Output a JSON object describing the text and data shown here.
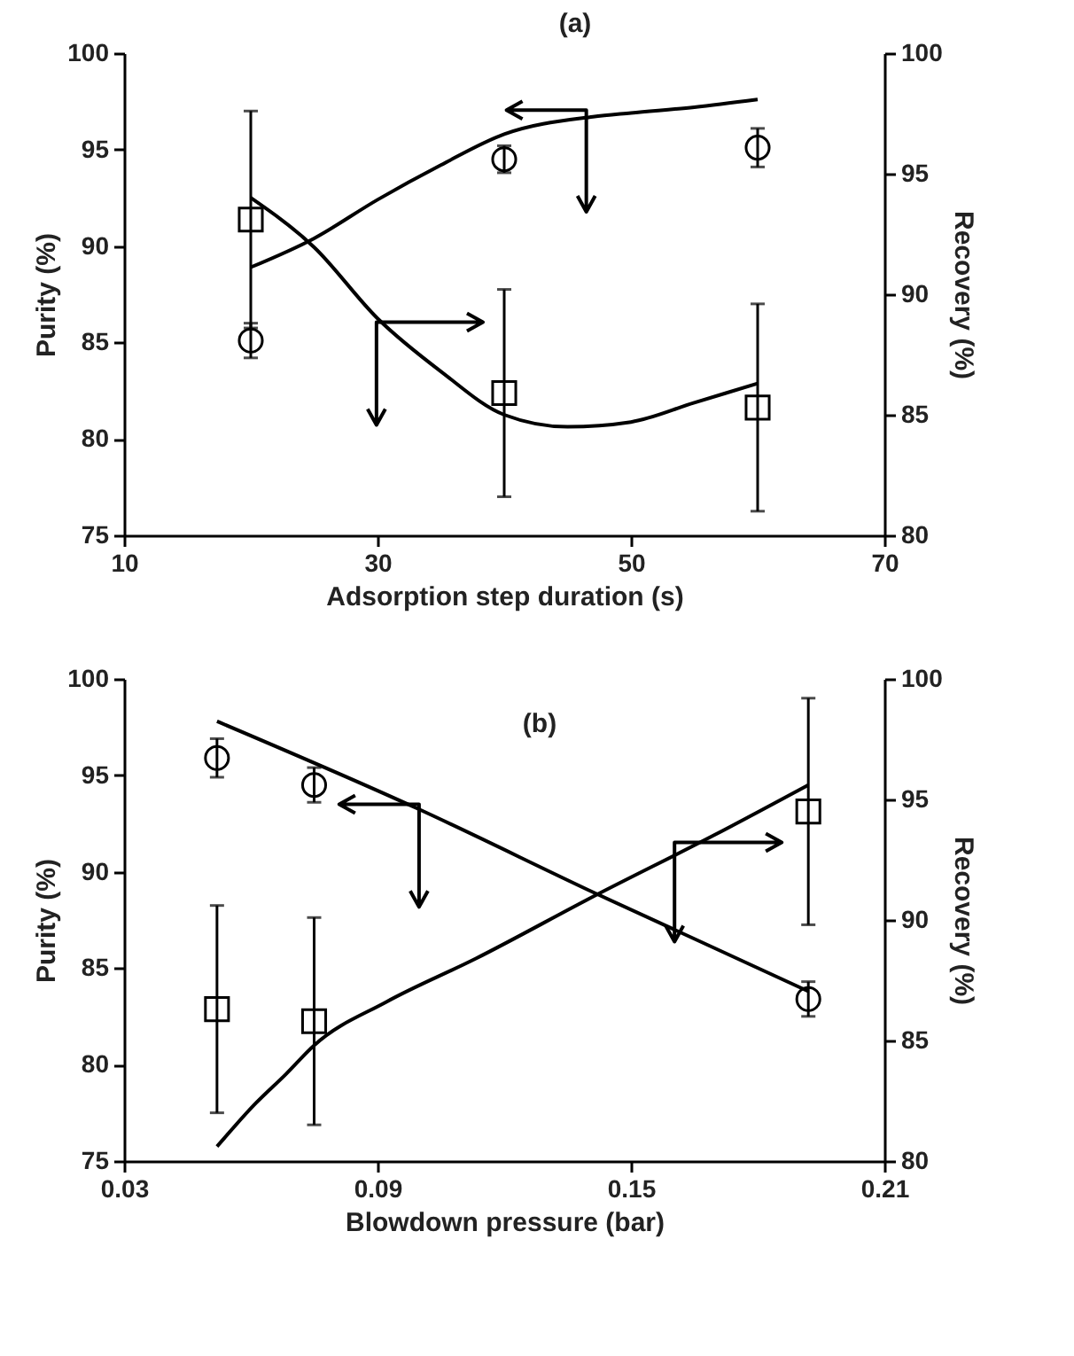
{
  "chart_data": [
    {
      "type": "scatter",
      "title": "(a)",
      "xlabel": "Adsorption step duration (s)",
      "ylabel": "Purity (%)",
      "y2label": "Recovery (%)",
      "xlim": [
        10,
        70
      ],
      "xticks": [
        10,
        30,
        50,
        70
      ],
      "ylim": [
        75,
        100
      ],
      "yticks": [
        75,
        80,
        85,
        90,
        95,
        100
      ],
      "y2lim": [
        80,
        100
      ],
      "y2ticks": [
        80,
        85,
        90,
        95,
        100
      ],
      "series": [
        {
          "marker": "circle",
          "color": "#000000",
          "x": [
            20,
            40,
            60
          ],
          "values": [
            85.1,
            94.5,
            95.1
          ],
          "errors": [
            0.9,
            0.7,
            1.0
          ]
        },
        {
          "marker": "square",
          "axis": "y2",
          "color": "#000000",
          "x": [
            20,
            40,
            60
          ],
          "values": [
            93.1,
            85.9,
            85.3
          ],
          "errors": [
            4.5,
            4.3,
            4.3
          ]
        },
        {
          "type": "line",
          "color": "#000000",
          "x": [
            20,
            25,
            30,
            35,
            40,
            47,
            50,
            55,
            60
          ],
          "values": [
            88.9,
            90.4,
            92.4,
            94.2,
            95.8,
            96.7,
            96.9,
            97.2,
            97.6
          ]
        },
        {
          "type": "line",
          "axis": "y2",
          "color": "#000000",
          "x": [
            20,
            25,
            30,
            35,
            40,
            45,
            50,
            55,
            60
          ],
          "values": [
            94.0,
            91.95,
            89.0,
            86.8,
            85.0,
            84.5,
            84.7,
            85.5,
            86.3
          ]
        }
      ]
    },
    {
      "type": "scatter",
      "title": "(b)",
      "xlabel": "Blowdown pressure (bar)",
      "ylabel": "Purity (%)",
      "y2label": "Recovery (%)",
      "xlim": [
        0.03,
        0.21
      ],
      "xticks": [
        0.03,
        0.09,
        0.15,
        0.21
      ],
      "ylim": [
        75,
        100
      ],
      "yticks": [
        75,
        80,
        85,
        90,
        95,
        100
      ],
      "y2lim": [
        80,
        100
      ],
      "y2ticks": [
        80,
        85,
        90,
        95,
        100
      ],
      "series": [
        {
          "marker": "circle",
          "color": "#000000",
          "x": [
            0.052,
            0.075,
            0.192
          ],
          "values": [
            95.9,
            94.5,
            83.4
          ],
          "errors": [
            1.0,
            0.9,
            0.9
          ]
        },
        {
          "marker": "square",
          "axis": "y2",
          "color": "#000000",
          "x": [
            0.052,
            0.075,
            0.192
          ],
          "values": [
            86.3,
            85.8,
            94.5
          ],
          "errors": [
            4.3,
            4.3,
            4.7
          ]
        },
        {
          "type": "line",
          "color": "#000000",
          "x": [
            0.052,
            0.0992,
            0.1414,
            0.192
          ],
          "values": [
            97.8,
            93.3,
            88.9,
            83.8
          ]
        },
        {
          "type": "line",
          "axis": "y2",
          "color": "#000000",
          "x": [
            0.052,
            0.0612,
            0.0683,
            0.075,
            0.0921,
            0.1133,
            0.1414,
            0.1695,
            0.192
          ],
          "values": [
            80.6,
            82.4,
            83.6,
            84.8,
            86.6,
            88.4,
            91.0,
            93.5,
            95.6
          ]
        }
      ]
    }
  ]
}
